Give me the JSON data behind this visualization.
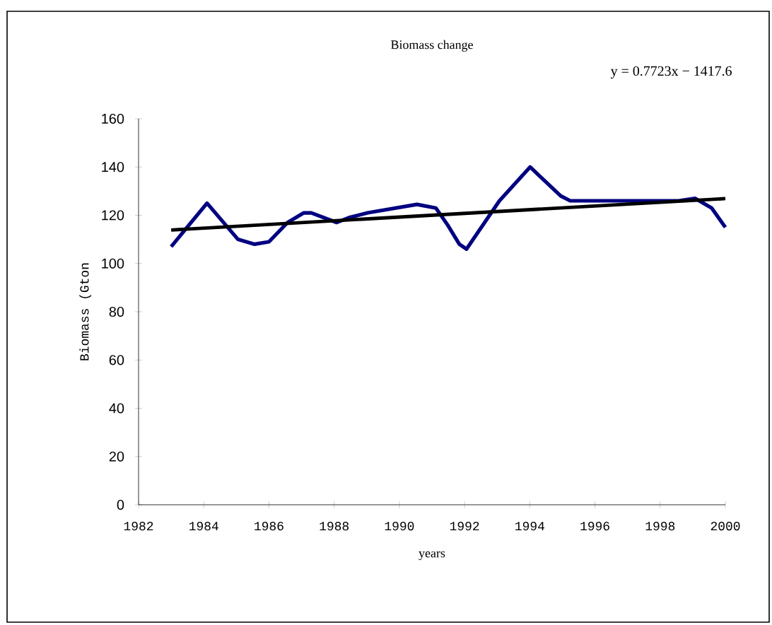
{
  "chart_data": {
    "type": "line",
    "title": "Biomass change",
    "xlabel": "years",
    "ylabel": "Biomass (Gton",
    "annotations": [
      "y = 0.7723x − 1417.6"
    ],
    "xlim": [
      1982,
      2000
    ],
    "xticks": [
      1982,
      1984,
      1986,
      1988,
      1990,
      1992,
      1994,
      1996,
      1998,
      2000
    ],
    "ylim": [
      0,
      160
    ],
    "yticks": [
      0,
      20,
      40,
      60,
      80,
      100,
      120,
      140,
      160
    ],
    "grid": false,
    "marker": "none",
    "line_style": "solid",
    "series": [
      {
        "color": "#000080",
        "x": [
          1983,
          1984.1,
          1985.05,
          1985.56,
          1986,
          1986.57,
          1987.07,
          1987.3,
          1988.08,
          1988.45,
          1989.03,
          1990.54,
          1991.12,
          1991.48,
          1991.84,
          1992.06,
          1993.07,
          1994.01,
          1994.95,
          1995.24,
          1998.57,
          1999.07,
          1999.58,
          2000
        ],
        "values": [
          107,
          125,
          110,
          108,
          109,
          117,
          121,
          121,
          117,
          119,
          121,
          124.5,
          123,
          116,
          108,
          106,
          126,
          140,
          128,
          126,
          126,
          127,
          123,
          115
        ]
      },
      {
        "color": "#000000",
        "x": [
          1983,
          2000
        ],
        "values": [
          113.9,
          126.9
        ]
      }
    ]
  }
}
